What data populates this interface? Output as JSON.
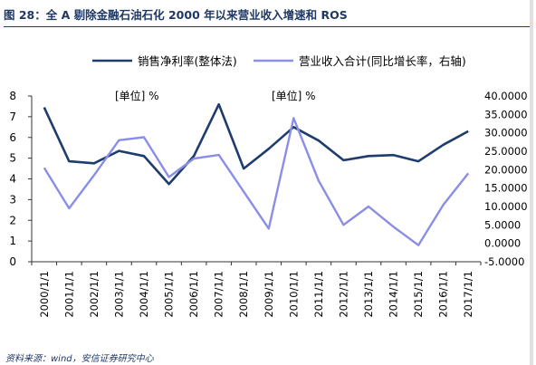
{
  "figure": {
    "title": "图 28：全 A 剔除金融石油石化 2000 年以来营业收入增速和 ROS",
    "source": "资料来源：wind，安信证券研究中心",
    "colors": {
      "title": "#1f3864",
      "rule": "#c00000",
      "series1": "#1f3c6e",
      "series2": "#8a8ee6"
    }
  },
  "chart_data": {
    "type": "line",
    "categories": [
      "2000/1/1",
      "2001/1/1",
      "2002/1/1",
      "2003/1/1",
      "2004/1/1",
      "2005/1/1",
      "2006/1/1",
      "2007/1/1",
      "2008/1/1",
      "2009/1/1",
      "2010/1/1",
      "2011/1/1",
      "2012/1/1",
      "2013/1/1",
      "2014/1/1",
      "2015/1/1",
      "2016/1/1",
      "2017/1/1"
    ],
    "series": [
      {
        "name": "销售净利率(整体法)",
        "axis": "left",
        "values": [
          7.45,
          4.85,
          4.75,
          5.35,
          5.1,
          3.75,
          5.1,
          7.6,
          4.5,
          5.45,
          6.5,
          5.85,
          4.9,
          5.1,
          5.15,
          4.85,
          5.65,
          6.3
        ]
      },
      {
        "name": "营业收入合计(同比增长率，右轴)",
        "axis": "right",
        "values": [
          20.5,
          9.5,
          18.5,
          28.0,
          28.8,
          18.0,
          23.0,
          24.0,
          14.0,
          4.0,
          34.0,
          17.0,
          5.0,
          10.0,
          4.5,
          -0.5,
          10.5,
          19.0
        ]
      }
    ],
    "left_axis": {
      "label": "[单位] %",
      "range": [
        0,
        8
      ],
      "ticks": [
        "0",
        "1",
        "2",
        "3",
        "4",
        "5",
        "6",
        "7",
        "8"
      ]
    },
    "right_axis": {
      "label": "[单位] %",
      "range": [
        -5,
        40
      ],
      "ticks": [
        "-5.0000",
        "0.0000",
        "5.0000",
        "10.0000",
        "15.0000",
        "20.0000",
        "25.0000",
        "30.0000",
        "35.0000",
        "40.0000"
      ]
    },
    "legend_position": "top",
    "grid": false
  }
}
